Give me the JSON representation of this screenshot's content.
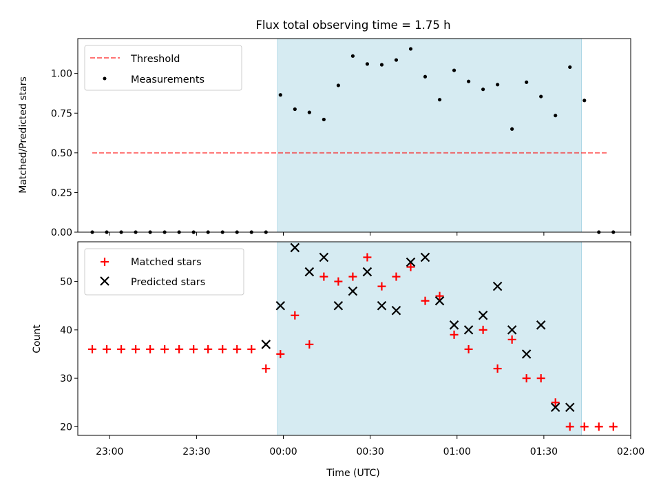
{
  "colors": {
    "band": "#add8e6",
    "threshold": "#ff0000",
    "measurement": "#000000",
    "matched": "#ff0000",
    "predicted": "#000000"
  },
  "chart_data": [
    {
      "type": "scatter",
      "title": "Flux total observing time = 1.75 h",
      "xlabel": "",
      "ylabel": "Matched/Predicted stars",
      "xlim": [
        "22:49",
        "02:00"
      ],
      "ylim": [
        0,
        1.22
      ],
      "yticks": [
        0.0,
        0.25,
        0.5,
        0.75,
        1.0
      ],
      "ytick_labels": [
        "0.00",
        "0.25",
        "0.50",
        "0.75",
        "1.00"
      ],
      "grid": false,
      "legend": "upper left",
      "highlight_span": [
        "23:58",
        "01:43"
      ],
      "series": [
        {
          "name": "Threshold",
          "style": "dashed-line",
          "x": [
            "22:54",
            "01:52"
          ],
          "y": [
            0.5,
            0.5
          ]
        },
        {
          "name": "Measurements",
          "style": "dot",
          "x": [
            "22:54",
            "22:59",
            "23:04",
            "23:09",
            "23:14",
            "23:19",
            "23:24",
            "23:29",
            "23:34",
            "23:39",
            "23:44",
            "23:49",
            "23:54",
            "23:59",
            "00:04",
            "00:09",
            "00:14",
            "00:19",
            "00:24",
            "00:29",
            "00:34",
            "00:39",
            "00:44",
            "00:49",
            "00:54",
            "00:59",
            "01:04",
            "01:09",
            "01:14",
            "01:19",
            "01:24",
            "01:29",
            "01:34",
            "01:39",
            "01:44",
            "01:49",
            "01:54"
          ],
          "y": [
            0,
            0,
            0,
            0,
            0,
            0,
            0,
            0,
            0,
            0,
            0,
            0,
            0,
            0.865,
            0.775,
            0.755,
            0.71,
            0.925,
            1.11,
            1.06,
            1.055,
            1.085,
            1.155,
            0.98,
            0.835,
            1.02,
            0.95,
            0.9,
            0.93,
            0.65,
            0.945,
            0.855,
            0.735,
            1.04,
            0.83,
            0,
            0
          ]
        }
      ]
    },
    {
      "type": "scatter",
      "title": "",
      "xlabel": "Time (UTC)",
      "ylabel": "Count",
      "xlim": [
        "22:49",
        "02:00"
      ],
      "ylim": [
        18.2,
        58.2
      ],
      "yticks": [
        20,
        30,
        40,
        50
      ],
      "ytick_labels": [
        "20",
        "30",
        "40",
        "50"
      ],
      "xticks": [
        "23:00",
        "23:30",
        "00:00",
        "00:30",
        "01:00",
        "01:30",
        "02:00"
      ],
      "xtick_labels": [
        "23:00",
        "23:30",
        "00:00",
        "00:30",
        "01:00",
        "01:30",
        "02:00"
      ],
      "grid": false,
      "legend": "upper left",
      "highlight_span": [
        "23:58",
        "01:43"
      ],
      "series": [
        {
          "name": "Matched stars",
          "marker": "plus",
          "x": [
            "22:54",
            "22:59",
            "23:04",
            "23:09",
            "23:14",
            "23:19",
            "23:24",
            "23:29",
            "23:34",
            "23:39",
            "23:44",
            "23:49",
            "23:54",
            "23:59",
            "00:04",
            "00:09",
            "00:14",
            "00:19",
            "00:24",
            "00:29",
            "00:34",
            "00:39",
            "00:44",
            "00:49",
            "00:54",
            "00:59",
            "01:04",
            "01:09",
            "01:14",
            "01:19",
            "01:24",
            "01:29",
            "01:34",
            "01:39",
            "01:44",
            "01:49",
            "01:54"
          ],
          "y": [
            36,
            36,
            36,
            36,
            36,
            36,
            36,
            36,
            36,
            36,
            36,
            36,
            32,
            35,
            43,
            37,
            51,
            50,
            51,
            55,
            49,
            51,
            53,
            46,
            47,
            39,
            36,
            40,
            32,
            38,
            30,
            30,
            25,
            20,
            20,
            20,
            20
          ]
        },
        {
          "name": "Predicted stars",
          "marker": "x",
          "x": [
            "23:54",
            "23:59",
            "00:04",
            "00:09",
            "00:14",
            "00:19",
            "00:24",
            "00:29",
            "00:34",
            "00:39",
            "00:44",
            "00:49",
            "00:54",
            "00:59",
            "01:04",
            "01:09",
            "01:14",
            "01:19",
            "01:24",
            "01:29",
            "01:34",
            "01:39"
          ],
          "y": [
            37,
            45,
            57,
            52,
            55,
            45,
            48,
            52,
            45,
            44,
            54,
            55,
            46,
            41,
            40,
            43,
            49,
            40,
            35,
            41,
            24,
            24
          ]
        }
      ]
    }
  ]
}
